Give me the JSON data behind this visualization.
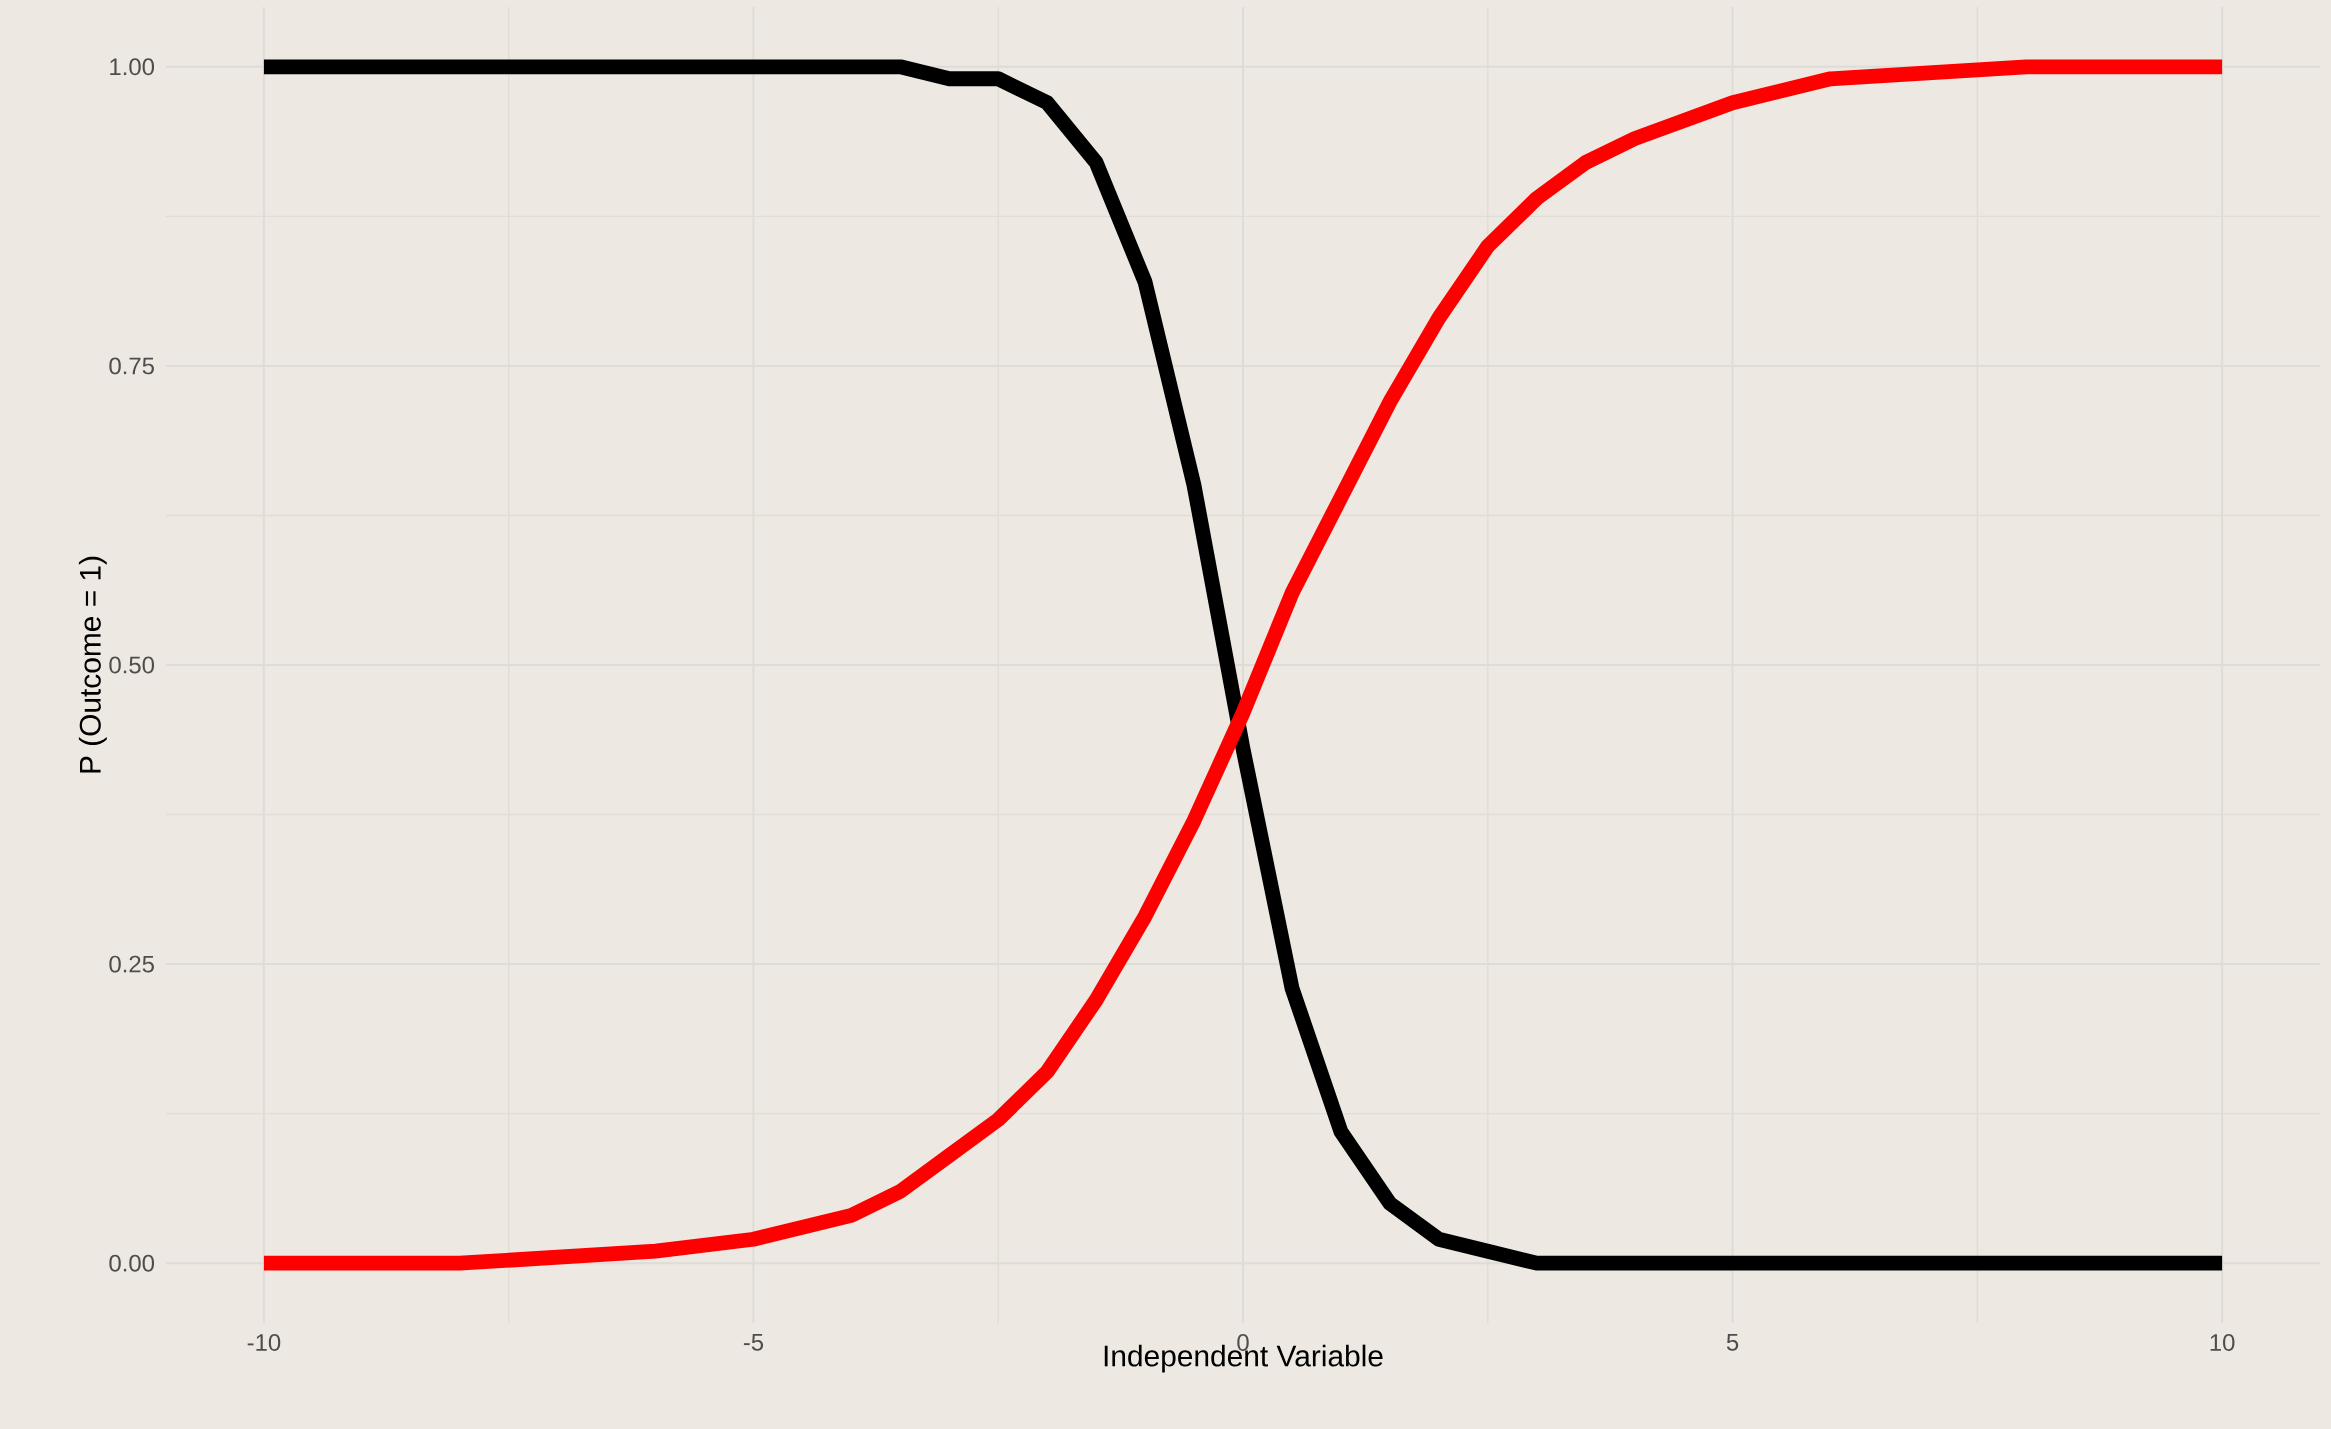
{
  "chart_data": {
    "type": "line",
    "xlabel": "Independent Variable",
    "ylabel": "P (Outcome = 1)",
    "x": [
      -10,
      -8,
      -6,
      -5,
      -4,
      -3.5,
      -3,
      -2.5,
      -2,
      -1.5,
      -1,
      -0.5,
      0,
      0.5,
      1,
      1.5,
      2,
      2.5,
      3,
      3.5,
      4,
      5,
      6,
      8,
      10
    ],
    "series": [
      {
        "color": "#000000",
        "values": [
          1.0,
          1.0,
          1.0,
          1.0,
          1.0,
          1.0,
          0.99,
          0.99,
          0.97,
          0.92,
          0.82,
          0.65,
          0.43,
          0.23,
          0.11,
          0.05,
          0.02,
          0.01,
          0.0,
          0.0,
          0.0,
          0.0,
          0.0,
          0.0,
          0.0
        ]
      },
      {
        "color": "#ff0000",
        "values": [
          0.0,
          0.0,
          0.01,
          0.02,
          0.04,
          0.06,
          0.09,
          0.12,
          0.16,
          0.22,
          0.29,
          0.37,
          0.46,
          0.56,
          0.64,
          0.72,
          0.79,
          0.85,
          0.89,
          0.92,
          0.94,
          0.97,
          0.99,
          1.0,
          1.0
        ]
      }
    ],
    "xlim": [
      -11,
      11
    ],
    "ylim": [
      -0.05,
      1.05
    ],
    "xticks": [
      -10,
      -5,
      0,
      5,
      10
    ],
    "yticks": [
      {
        "value": 0,
        "label": "0.00"
      },
      {
        "value": 0.25,
        "label": "0.25"
      },
      {
        "value": 0.5,
        "label": "0.50"
      },
      {
        "value": 0.75,
        "label": "0.75"
      },
      {
        "value": 1,
        "label": "1.00"
      }
    ],
    "grid": true
  }
}
